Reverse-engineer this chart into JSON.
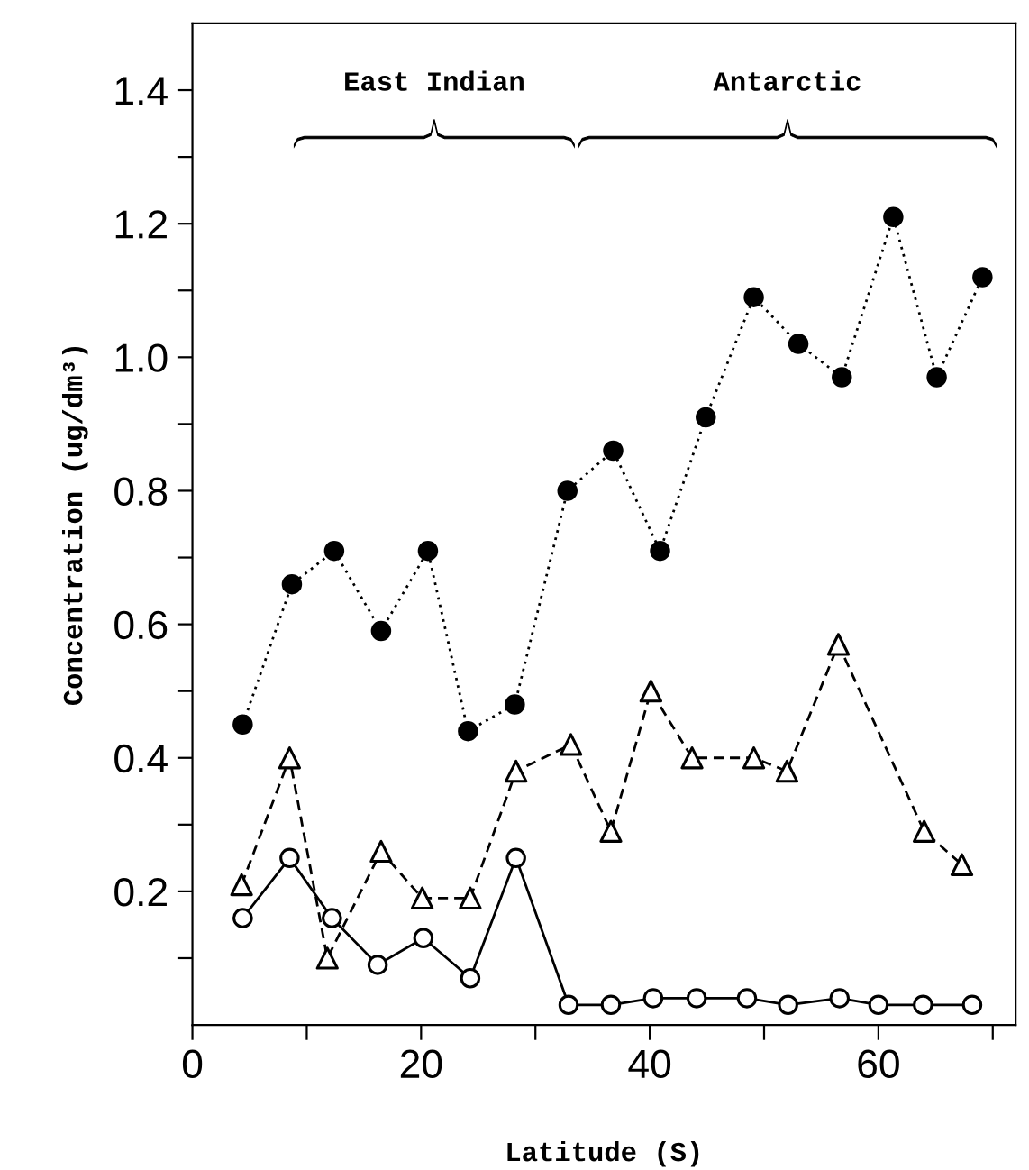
{
  "chart_data": {
    "type": "line",
    "xlabel": "Latitude (S)",
    "ylabel": "Concentration (ug/dm³)",
    "xlim": [
      0,
      72
    ],
    "ylim": [
      0,
      1.5
    ],
    "xticks": [
      0,
      {
        "value": 10,
        "label": null
      },
      20,
      {
        "value": 30,
        "label": null
      },
      40,
      {
        "value": 50,
        "label": null
      },
      60,
      {
        "value": 70,
        "label": null
      }
    ],
    "yticks": [
      {
        "value": 0.1,
        "label": null
      },
      0.2,
      {
        "value": 0.3,
        "label": null
      },
      0.4,
      {
        "value": 0.5,
        "label": null
      },
      0.6,
      {
        "value": 0.7,
        "label": null
      },
      0.8,
      {
        "value": 0.9,
        "label": null
      },
      {
        "value": 1.0,
        "label": "1.0"
      },
      {
        "value": 1.1,
        "label": null
      },
      1.2,
      {
        "value": 1.3,
        "label": null
      },
      1.4
    ],
    "grid": false,
    "legend": false,
    "annotations": [
      "East Indian",
      "Antarctic"
    ],
    "series": [
      {
        "color": "#000000",
        "marker": "circle",
        "line_style": "dotted",
        "x": [
          4.4,
          8.7,
          12.4,
          16.5,
          20.6,
          24.1,
          28.2,
          32.8,
          36.8,
          40.9,
          44.9,
          49.1,
          53.0,
          56.8,
          61.3,
          65.1,
          69.1
        ],
        "values": [
          0.45,
          0.66,
          0.71,
          0.59,
          0.71,
          0.44,
          0.48,
          0.8,
          0.86,
          0.71,
          0.91,
          1.09,
          1.02,
          0.97,
          1.21,
          0.97,
          1.12
        ]
      },
      {
        "color": "#000000",
        "colors": [
          "#ffffff",
          "#ffffff",
          "#ffffff",
          "#ffffff",
          "#ffffff",
          "#ffffff",
          "#ffffff",
          "#ffffff",
          "#ffffff",
          "#ffffff",
          "#ffffff",
          "#ffffff",
          "#ffffff",
          "#ffffff",
          "#ffffff",
          "#ffffff"
        ],
        "marker": "triangle",
        "line_style": "dashed",
        "x": [
          4.3,
          8.5,
          11.8,
          16.5,
          20.1,
          24.3,
          28.3,
          33.1,
          36.6,
          40.1,
          43.7,
          49.1,
          52.0,
          56.5,
          64.0,
          67.3
        ],
        "values": [
          0.21,
          0.4,
          0.1,
          0.26,
          0.19,
          0.19,
          0.38,
          0.42,
          0.29,
          0.5,
          0.4,
          0.4,
          0.38,
          0.57,
          0.29,
          0.24
        ]
      },
      {
        "color": "#000000",
        "colors": [
          "#ffffff",
          "#ffffff",
          "#ffffff",
          "#ffffff",
          "#ffffff",
          "#ffffff",
          "#ffffff",
          "#ffffff",
          "#ffffff",
          "#ffffff",
          "#ffffff",
          "#ffffff",
          "#ffffff",
          "#ffffff",
          "#ffffff",
          "#ffffff",
          "#ffffff"
        ],
        "marker": "circle",
        "line_style": "solid",
        "x": [
          4.4,
          8.5,
          12.2,
          16.2,
          20.2,
          24.3,
          28.3,
          32.9,
          36.6,
          40.3,
          44.1,
          48.5,
          52.1,
          56.6,
          60.0,
          63.9,
          68.2
        ],
        "values": [
          0.16,
          0.25,
          0.16,
          0.09,
          0.13,
          0.07,
          0.25,
          0.03,
          0.03,
          0.04,
          0.04,
          0.04,
          0.03,
          0.04,
          0.03,
          0.03,
          0.03
        ]
      }
    ]
  }
}
